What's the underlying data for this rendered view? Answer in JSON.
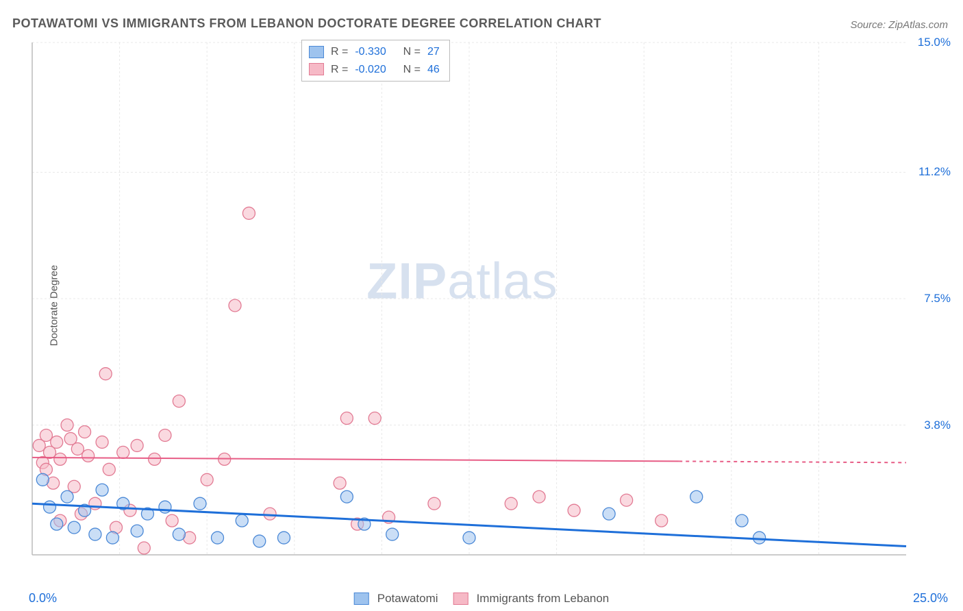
{
  "title": "POTAWATOMI VS IMMIGRANTS FROM LEBANON DOCTORATE DEGREE CORRELATION CHART",
  "source": "Source: ZipAtlas.com",
  "ylabel": "Doctorate Degree",
  "watermark_zip": "ZIP",
  "watermark_atlas": "atlas",
  "chart": {
    "type": "scatter",
    "xlim": [
      0,
      25
    ],
    "ylim": [
      0,
      15
    ],
    "xtick_labels": [
      "0.0%",
      "25.0%"
    ],
    "ytick_labels": [
      "15.0%",
      "11.2%",
      "7.5%",
      "3.8%"
    ],
    "ytick_values": [
      15.0,
      11.2,
      7.5,
      3.8
    ],
    "grid_color": "#e8e8e8",
    "axis_color": "#bbbbbb",
    "background_color": "#ffffff",
    "marker_radius": 9,
    "marker_opacity": 0.55,
    "series": [
      {
        "name": "Potawatomi",
        "color_fill": "#9ec3ee",
        "color_stroke": "#4a88d6",
        "r": "-0.330",
        "n": "27",
        "trend": {
          "y_at_x0": 1.5,
          "y_at_x25": 0.25,
          "color": "#1e6fd9",
          "width": 3,
          "solid_to_x": 25
        },
        "points": [
          [
            0.3,
            2.2
          ],
          [
            0.5,
            1.4
          ],
          [
            0.7,
            0.9
          ],
          [
            1.0,
            1.7
          ],
          [
            1.2,
            0.8
          ],
          [
            1.5,
            1.3
          ],
          [
            1.8,
            0.6
          ],
          [
            2.0,
            1.9
          ],
          [
            2.3,
            0.5
          ],
          [
            2.6,
            1.5
          ],
          [
            3.0,
            0.7
          ],
          [
            3.3,
            1.2
          ],
          [
            3.8,
            1.4
          ],
          [
            4.2,
            0.6
          ],
          [
            4.8,
            1.5
          ],
          [
            5.3,
            0.5
          ],
          [
            6.0,
            1.0
          ],
          [
            6.5,
            0.4
          ],
          [
            7.2,
            0.5
          ],
          [
            9.0,
            1.7
          ],
          [
            9.5,
            0.9
          ],
          [
            10.3,
            0.6
          ],
          [
            12.5,
            0.5
          ],
          [
            16.5,
            1.2
          ],
          [
            19.0,
            1.7
          ],
          [
            20.3,
            1.0
          ],
          [
            20.8,
            0.5
          ]
        ]
      },
      {
        "name": "Immigrants from Lebanon",
        "color_fill": "#f6b9c6",
        "color_stroke": "#e27a93",
        "r": "-0.020",
        "n": "46",
        "trend": {
          "y_at_x0": 2.85,
          "y_at_x25": 2.7,
          "color": "#e75c85",
          "width": 2,
          "solid_to_x": 18.5
        },
        "points": [
          [
            0.2,
            3.2
          ],
          [
            0.3,
            2.7
          ],
          [
            0.4,
            3.5
          ],
          [
            0.4,
            2.5
          ],
          [
            0.5,
            3.0
          ],
          [
            0.6,
            2.1
          ],
          [
            0.7,
            3.3
          ],
          [
            0.8,
            2.8
          ],
          [
            0.8,
            1.0
          ],
          [
            1.0,
            3.8
          ],
          [
            1.1,
            3.4
          ],
          [
            1.2,
            2.0
          ],
          [
            1.3,
            3.1
          ],
          [
            1.4,
            1.2
          ],
          [
            1.5,
            3.6
          ],
          [
            1.6,
            2.9
          ],
          [
            1.8,
            1.5
          ],
          [
            2.0,
            3.3
          ],
          [
            2.1,
            5.3
          ],
          [
            2.2,
            2.5
          ],
          [
            2.4,
            0.8
          ],
          [
            2.6,
            3.0
          ],
          [
            2.8,
            1.3
          ],
          [
            3.0,
            3.2
          ],
          [
            3.2,
            0.2
          ],
          [
            3.5,
            2.8
          ],
          [
            3.8,
            3.5
          ],
          [
            4.0,
            1.0
          ],
          [
            4.2,
            4.5
          ],
          [
            4.5,
            0.5
          ],
          [
            5.0,
            2.2
          ],
          [
            5.5,
            2.8
          ],
          [
            5.8,
            7.3
          ],
          [
            6.2,
            10.0
          ],
          [
            6.8,
            1.2
          ],
          [
            8.8,
            2.1
          ],
          [
            9.0,
            4.0
          ],
          [
            9.3,
            0.9
          ],
          [
            9.8,
            4.0
          ],
          [
            10.2,
            1.1
          ],
          [
            11.5,
            1.5
          ],
          [
            13.7,
            1.5
          ],
          [
            14.5,
            1.7
          ],
          [
            15.5,
            1.3
          ],
          [
            17.0,
            1.6
          ],
          [
            18.0,
            1.0
          ]
        ]
      }
    ]
  },
  "legend_bottom": [
    {
      "label": "Potawatomi",
      "fill": "#9ec3ee",
      "stroke": "#4a88d6"
    },
    {
      "label": "Immigrants from Lebanon",
      "fill": "#f6b9c6",
      "stroke": "#e27a93"
    }
  ],
  "legend_top_labels": {
    "r": "R =",
    "n": "N ="
  }
}
